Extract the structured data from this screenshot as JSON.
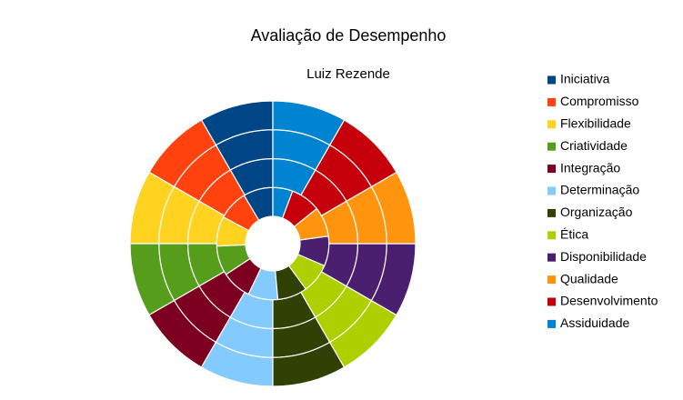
{
  "chart_data": {
    "type": "donut",
    "title": "Avaliação de Desempenho",
    "subtitle": "Luiz Rezende",
    "categories": [
      "Iniciativa",
      "Compromisso",
      "Flexibilidade",
      "Criatividade",
      "Integração",
      "Determinação",
      "Organização",
      "Ética",
      "Disponibilidade",
      "Qualidade",
      "Desenvolvimento",
      "Assiduidade"
    ],
    "colors": [
      "#004586",
      "#ff420e",
      "#ffd320",
      "#579d1c",
      "#7e0021",
      "#83caff",
      "#314004",
      "#aecf00",
      "#4b1f6f",
      "#ff950e",
      "#c5000b",
      "#0084d1"
    ],
    "series": [
      {
        "values": [
          3,
          3,
          3,
          3,
          3,
          3,
          3,
          3,
          3,
          3,
          3,
          2
        ]
      },
      {
        "values": [
          3,
          3,
          3,
          3,
          3,
          3,
          3,
          3,
          3,
          3,
          3,
          3
        ]
      },
      {
        "values": [
          3,
          3,
          3,
          3,
          3,
          3,
          3,
          3,
          3,
          3,
          3,
          3
        ]
      },
      {
        "values": [
          3,
          3,
          3,
          3,
          3,
          3,
          3,
          3,
          3,
          3,
          3,
          3
        ]
      }
    ],
    "legend": "right"
  }
}
